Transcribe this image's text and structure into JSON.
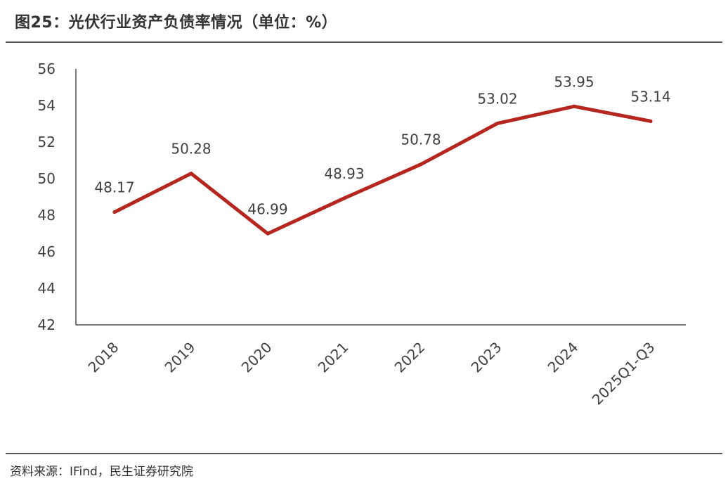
{
  "figure": {
    "title": "图25：光伏行业资产负债率情况（单位：%）",
    "source": "资料来源：IFind，民生证券研究院"
  },
  "colors": {
    "line": "#b4261e",
    "axis": "#4d4d4d",
    "text": "#404040"
  },
  "chart_data": {
    "type": "line",
    "title": "光伏行业资产负债率情况（单位：%）",
    "xlabel": "",
    "ylabel": "",
    "categories": [
      "2018",
      "2019",
      "2020",
      "2021",
      "2022",
      "2023",
      "2024",
      "2025Q1-Q3"
    ],
    "series": [
      {
        "name": "资产负债率",
        "values": [
          48.17,
          50.28,
          46.99,
          48.93,
          50.78,
          53.02,
          53.95,
          53.14
        ],
        "labels": [
          "48.17",
          "50.28",
          "46.99",
          "48.93",
          "50.78",
          "53.02",
          "53.95",
          "53.14"
        ]
      }
    ],
    "ylim": [
      42,
      56
    ],
    "yticks": [
      42,
      44,
      46,
      48,
      50,
      52,
      54,
      56
    ],
    "ytick_labels": [
      "42",
      "44",
      "46",
      "48",
      "50",
      "52",
      "54",
      "56"
    ],
    "grid": false,
    "legend": "none"
  }
}
